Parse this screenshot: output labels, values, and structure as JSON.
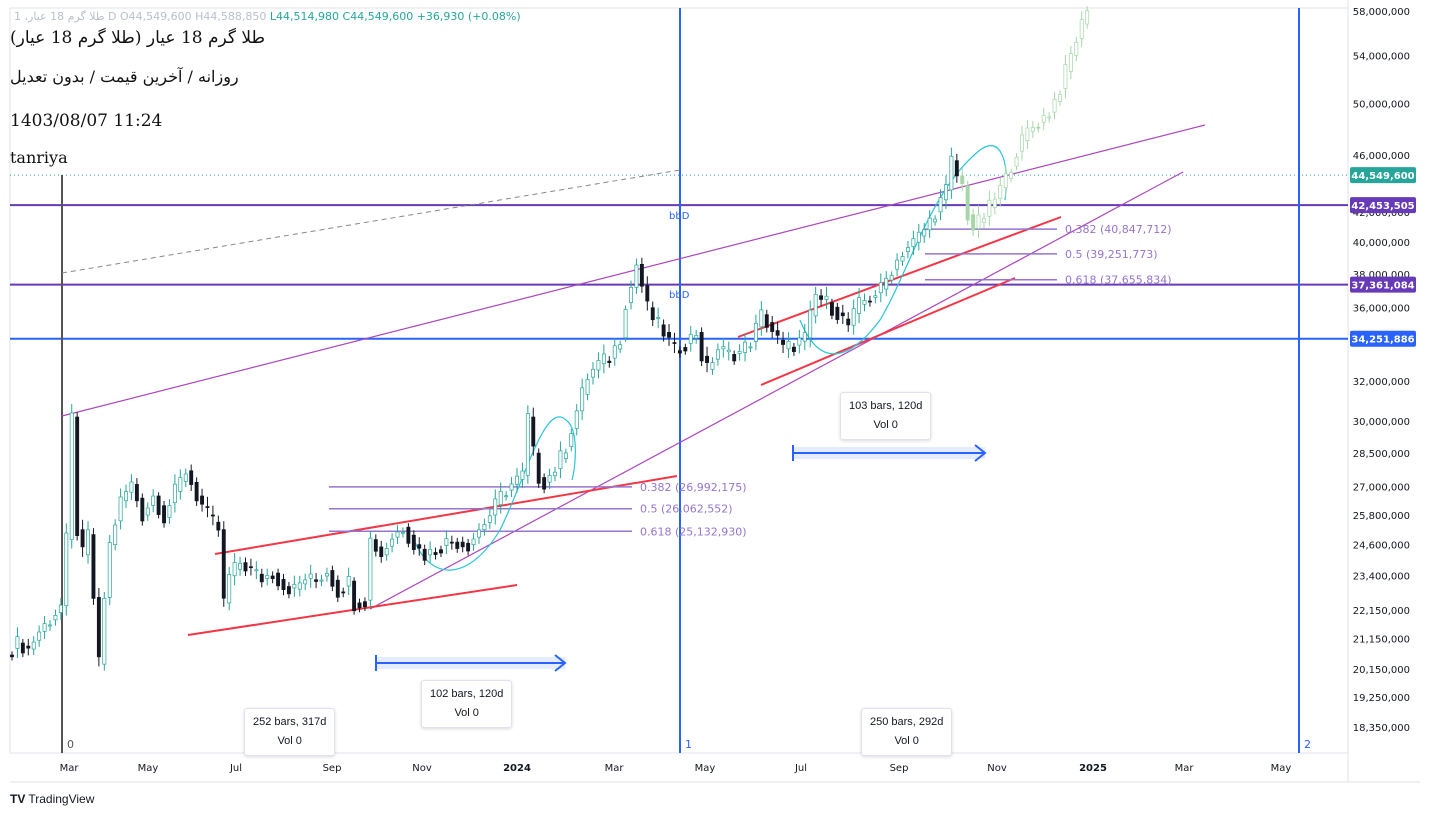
{
  "header": {
    "ohlc_faded_prefix": "1 ،طلا گرم 18 عیار D",
    "open": "O44,549,600",
    "high": "H44,588,850",
    "low": "L44,514,980",
    "close": "C44,549,600",
    "change": "+36,930 (+0.08%)",
    "title": "طلا گرم 18 عیار (طلا گرم 18 عیار)",
    "subtitle": "روزانه / آخرین قیمت / بدون تعدیل",
    "datetime": "1403/08/07 11:24",
    "author": "tanriya"
  },
  "brand": "TradingView",
  "colors": {
    "up": "#26a69a",
    "down": "#131722",
    "trend_red": "#f23645",
    "channel_purple": "#ab47bc",
    "fib_purple": "#9575cd",
    "hline_blue": "#2962ff",
    "hline_purple": "#673ab7",
    "arc_cyan": "#26c6da",
    "vline_blue": "#2962ff",
    "projection": "#a5d6a7"
  },
  "chart_data": {
    "type": "candlestick",
    "symbol": "طلا گرم 18 عیار",
    "timeframe": "daily",
    "scale": "log",
    "x_axis_labels": [
      "Mar",
      "May",
      "Jul",
      "Sep",
      "Nov",
      "2024",
      "Mar",
      "May",
      "Jul",
      "Sep",
      "Nov",
      "2025",
      "Mar",
      "May"
    ],
    "y_axis_labels": [
      "58,000,000",
      "54,000,000",
      "50,000,000",
      "46,000,000",
      "42,000,000",
      "40,000,000",
      "38,000,000",
      "36,000,000",
      "32,000,000",
      "30,000,000",
      "28,500,000",
      "27,000,000",
      "25,800,000",
      "24,600,000",
      "23,400,000",
      "22,150,000",
      "21,150,000",
      "20,150,000",
      "19,250,000",
      "18,350,000"
    ],
    "y_range": [
      17800000,
      58500000
    ],
    "price_tags": [
      {
        "label": "44,549,600",
        "value": 44549600,
        "color": "#26a69a"
      },
      {
        "label": "42,453,505",
        "value": 42453505,
        "color": "#673ab7"
      },
      {
        "label": "37,361,084",
        "value": 37361084,
        "color": "#673ab7"
      },
      {
        "label": "34,251,886",
        "value": 34251886,
        "color": "#2962ff"
      }
    ],
    "horizontal_lines": [
      {
        "value": 42453505,
        "color": "#673ab7"
      },
      {
        "value": 37361084,
        "color": "#673ab7"
      },
      {
        "value": 34251886,
        "color": "#2962ff"
      }
    ],
    "fib_sets": [
      {
        "levels": [
          {
            "label": "0.382 (26,992,175)",
            "value": 26992175
          },
          {
            "label": "0.5 (26,062,552)",
            "value": 26062552
          },
          {
            "label": "0.618 (25,132,930)",
            "value": 25132930
          }
        ]
      },
      {
        "levels": [
          {
            "label": "0.382 (40,847,712)",
            "value": 40847712
          },
          {
            "label": "0.5 (39,251,773)",
            "value": 39251773
          },
          {
            "label": "0.618 (37,655,834)",
            "value": 37655834
          }
        ]
      }
    ],
    "cycle_lines": [
      {
        "label": "0"
      },
      {
        "label": "1"
      },
      {
        "label": "2"
      }
    ],
    "range_measures": [
      {
        "bars_label": "252 bars, 317d",
        "vol_label": "Vol 0"
      },
      {
        "bars_label": "102 bars, 120d",
        "vol_label": "Vol 0"
      },
      {
        "bars_label": "250 bars, 292d",
        "vol_label": "Vol 0"
      },
      {
        "bars_label": "103 bars, 120d",
        "vol_label": "Vol 0"
      }
    ],
    "annotations": [
      "bbD",
      "bbD"
    ],
    "price_path": [
      [
        0,
        20600000
      ],
      [
        2,
        21000000
      ],
      [
        4,
        20800000
      ],
      [
        6,
        21400000
      ],
      [
        8,
        21800000
      ],
      [
        10,
        22300000
      ],
      [
        11,
        24800000
      ],
      [
        12,
        30200000
      ],
      [
        13,
        25200000
      ],
      [
        14,
        24200000
      ],
      [
        15,
        25000000
      ],
      [
        16,
        22600000
      ],
      [
        17,
        20300000
      ],
      [
        18,
        22600000
      ],
      [
        19,
        24600000
      ],
      [
        21,
        26400000
      ],
      [
        23,
        27100000
      ],
      [
        25,
        25800000
      ],
      [
        27,
        26600000
      ],
      [
        29,
        25700000
      ],
      [
        31,
        26800000
      ],
      [
        33,
        27700000
      ],
      [
        35,
        26600000
      ],
      [
        37,
        25800000
      ],
      [
        39,
        25200000
      ],
      [
        40,
        22400000
      ],
      [
        41,
        23400000
      ],
      [
        43,
        23900000
      ],
      [
        45,
        23600000
      ],
      [
        47,
        23300000
      ],
      [
        49,
        23500000
      ],
      [
        51,
        23000000
      ],
      [
        53,
        22900000
      ],
      [
        55,
        23300000
      ],
      [
        57,
        23200000
      ],
      [
        59,
        23600000
      ],
      [
        61,
        22800000
      ],
      [
        63,
        23200000
      ],
      [
        64,
        22400000
      ],
      [
        66,
        22500000
      ],
      [
        67,
        24800000
      ],
      [
        69,
        24200000
      ],
      [
        71,
        24900000
      ],
      [
        73,
        25300000
      ],
      [
        75,
        24600000
      ],
      [
        77,
        24200000
      ],
      [
        79,
        24400000
      ],
      [
        81,
        24700000
      ],
      [
        83,
        24700000
      ],
      [
        85,
        24600000
      ],
      [
        87,
        25200000
      ],
      [
        89,
        25800000
      ],
      [
        91,
        26600000
      ],
      [
        93,
        27100000
      ],
      [
        95,
        27500000
      ],
      [
        96,
        30200000
      ],
      [
        97,
        28500000
      ],
      [
        98,
        27400000
      ],
      [
        99,
        27200000
      ],
      [
        101,
        27800000
      ],
      [
        103,
        28800000
      ],
      [
        105,
        30500000
      ],
      [
        107,
        32200000
      ],
      [
        109,
        32900000
      ],
      [
        111,
        33200000
      ],
      [
        113,
        34300000
      ],
      [
        114,
        36300000
      ],
      [
        115,
        37200000
      ],
      [
        116,
        38600000
      ],
      [
        117,
        37300000
      ],
      [
        118,
        36000000
      ],
      [
        119,
        35400000
      ],
      [
        121,
        34600000
      ],
      [
        123,
        33600000
      ],
      [
        125,
        34000000
      ],
      [
        127,
        34600000
      ],
      [
        128,
        33300000
      ],
      [
        129,
        32600000
      ],
      [
        131,
        33700000
      ],
      [
        133,
        33400000
      ],
      [
        135,
        33500000
      ],
      [
        137,
        34100000
      ],
      [
        139,
        35600000
      ],
      [
        141,
        34700000
      ],
      [
        143,
        33700000
      ],
      [
        145,
        33900000
      ],
      [
        147,
        34300000
      ],
      [
        149,
        36700000
      ],
      [
        151,
        36300000
      ],
      [
        153,
        35700000
      ],
      [
        155,
        35000000
      ],
      [
        157,
        36200000
      ],
      [
        159,
        36600000
      ],
      [
        161,
        37100000
      ],
      [
        163,
        38300000
      ],
      [
        165,
        39400000
      ],
      [
        167,
        40000000
      ],
      [
        169,
        40800000
      ],
      [
        171,
        42000000
      ],
      [
        173,
        43500000
      ],
      [
        174,
        45600000
      ],
      [
        175,
        44500000
      ]
    ],
    "projection_path": [
      [
        175,
        44500000
      ],
      [
        176,
        43800000
      ],
      [
        177,
        41800000
      ],
      [
        178,
        40900000
      ],
      [
        180,
        41700000
      ],
      [
        182,
        42900000
      ],
      [
        184,
        44300000
      ],
      [
        186,
        46300000
      ],
      [
        188,
        47800000
      ],
      [
        190,
        48500000
      ],
      [
        192,
        49300000
      ],
      [
        194,
        51200000
      ],
      [
        196,
        54000000
      ],
      [
        198,
        56800000
      ],
      [
        199,
        58500000
      ]
    ]
  }
}
